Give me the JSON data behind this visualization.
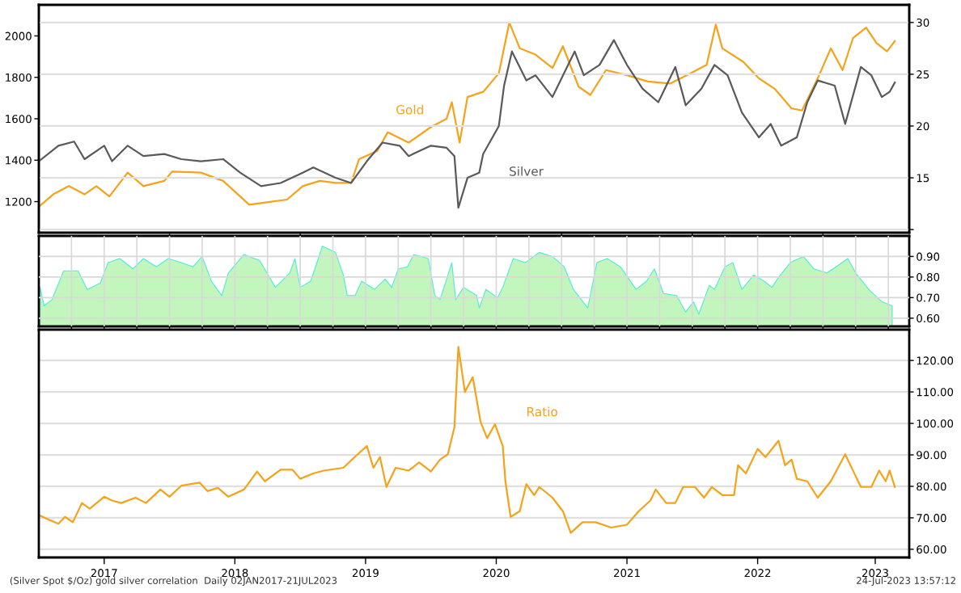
{
  "chart_data": [
    {
      "type": "line",
      "xlim": [
        2017.0,
        2023.66
      ],
      "xticks": [
        {
          "value": 2018.0,
          "label": null
        },
        {
          "value": 2019.0,
          "label": null
        },
        {
          "value": 2020.0,
          "label": null
        },
        {
          "value": 2021.0,
          "label": null
        },
        {
          "value": 2022.0,
          "label": null
        },
        {
          "value": 2023.0,
          "label": null
        }
      ],
      "ylim": [
        1050,
        2150
      ],
      "yticks": [
        1200,
        1400,
        1600,
        1800,
        2000
      ],
      "y2lim": [
        9.7,
        31.7
      ],
      "y2ticks": [
        {
          "value": 10,
          "label": null
        },
        15,
        20,
        25,
        30
      ],
      "grid": "y",
      "tick_labels": "y",
      "series": [
        {
          "name": "Gold",
          "color": "#f5a31a",
          "x": [
            2017.0,
            2017.11,
            2017.23,
            2017.35,
            2017.44,
            2017.54,
            2017.68,
            2017.8,
            2017.96,
            2018.02,
            2018.24,
            2018.41,
            2018.61,
            2018.78,
            2018.9,
            2019.02,
            2019.15,
            2019.27,
            2019.39,
            2019.45,
            2019.59,
            2019.67,
            2019.83,
            2020.0,
            2020.12,
            2020.16,
            2020.22,
            2020.28,
            2020.4,
            2020.52,
            2020.6,
            2020.68,
            2020.8,
            2020.93,
            2021.01,
            2021.13,
            2021.22,
            2021.34,
            2021.5,
            2021.66,
            2021.83,
            2021.99,
            2022.11,
            2022.18,
            2022.23,
            2022.39,
            2022.51,
            2022.63,
            2022.76,
            2022.84,
            2022.96,
            2023.06,
            2023.15,
            2023.23,
            2023.33,
            2023.41,
            2023.49,
            2023.55
          ],
          "values": [
            1175,
            1235,
            1275,
            1235,
            1275,
            1225,
            1340,
            1275,
            1300,
            1345,
            1340,
            1300,
            1185,
            1200,
            1210,
            1275,
            1300,
            1290,
            1290,
            1405,
            1445,
            1535,
            1485,
            1560,
            1600,
            1680,
            1485,
            1705,
            1730,
            1820,
            2065,
            1940,
            1910,
            1845,
            1950,
            1755,
            1715,
            1835,
            1810,
            1780,
            1770,
            1820,
            1860,
            2055,
            1940,
            1875,
            1795,
            1745,
            1650,
            1640,
            1795,
            1940,
            1835,
            1990,
            2040,
            1965,
            1925,
            1975
          ]
        },
        {
          "name": "Silver",
          "color": "#5a5a5a",
          "axis": "y2",
          "x": [
            2017.0,
            2017.15,
            2017.27,
            2017.35,
            2017.5,
            2017.56,
            2017.68,
            2017.8,
            2017.96,
            2018.09,
            2018.24,
            2018.41,
            2018.54,
            2018.7,
            2018.85,
            2019.02,
            2019.1,
            2019.27,
            2019.39,
            2019.51,
            2019.63,
            2019.76,
            2019.83,
            2020.0,
            2020.12,
            2020.18,
            2020.21,
            2020.28,
            2020.37,
            2020.4,
            2020.52,
            2020.56,
            2020.62,
            2020.73,
            2020.8,
            2020.93,
            2021.1,
            2021.17,
            2021.29,
            2021.4,
            2021.5,
            2021.62,
            2021.74,
            2021.87,
            2021.95,
            2022.07,
            2022.17,
            2022.27,
            2022.38,
            2022.51,
            2022.6,
            2022.68,
            2022.8,
            2022.88,
            2022.96,
            2023.09,
            2023.17,
            2023.29,
            2023.37,
            2023.45,
            2023.51,
            2023.55
          ],
          "values": [
            16.6,
            18.1,
            18.5,
            16.8,
            18.1,
            16.6,
            18.1,
            17.1,
            17.3,
            16.8,
            16.6,
            16.8,
            15.5,
            14.2,
            14.5,
            15.5,
            16.0,
            15.0,
            14.5,
            16.6,
            18.4,
            18.1,
            17.1,
            18.1,
            17.9,
            17.1,
            12.1,
            15.0,
            15.5,
            17.3,
            20.0,
            23.9,
            27.2,
            24.4,
            24.9,
            22.8,
            27.2,
            24.9,
            25.9,
            28.3,
            25.9,
            23.6,
            22.3,
            25.7,
            22.0,
            23.6,
            25.9,
            24.9,
            21.3,
            18.9,
            20.2,
            18.1,
            18.9,
            22.3,
            24.4,
            23.9,
            20.2,
            25.7,
            24.9,
            22.8,
            23.3,
            24.2
          ]
        }
      ]
    },
    {
      "type": "area",
      "xlim": [
        2017.0,
        2023.66
      ],
      "xticks": [
        {
          "value": 2017.25,
          "label": null
        },
        {
          "value": 2017.5,
          "label": null
        },
        {
          "value": 2017.75,
          "label": null
        },
        {
          "value": 2018.0,
          "label": null
        },
        {
          "value": 2018.25,
          "label": null
        },
        {
          "value": 2018.5,
          "label": null
        },
        {
          "value": 2018.75,
          "label": null
        },
        {
          "value": 2019.0,
          "label": null
        },
        {
          "value": 2019.25,
          "label": null
        },
        {
          "value": 2019.5,
          "label": null
        },
        {
          "value": 2019.75,
          "label": null
        },
        {
          "value": 2020.0,
          "label": null
        },
        {
          "value": 2020.25,
          "label": null
        },
        {
          "value": 2020.5,
          "label": null
        },
        {
          "value": 2020.75,
          "label": null
        },
        {
          "value": 2021.0,
          "label": null
        },
        {
          "value": 2021.25,
          "label": null
        },
        {
          "value": 2021.5,
          "label": null
        },
        {
          "value": 2021.75,
          "label": null
        },
        {
          "value": 2022.0,
          "label": null
        },
        {
          "value": 2022.25,
          "label": null
        },
        {
          "value": 2022.5,
          "label": null
        },
        {
          "value": 2022.75,
          "label": null
        },
        {
          "value": 2023.0,
          "label": null
        },
        {
          "value": 2023.25,
          "label": null
        },
        {
          "value": 2023.5,
          "label": null
        }
      ],
      "ylim": [
        0.56,
        1.0
      ],
      "yticks": [
        {
          "value": 0.6,
          "label": "0.60"
        },
        {
          "value": 0.7,
          "label": "0.70"
        },
        {
          "value": 0.8,
          "label": "0.80"
        },
        {
          "value": 0.9,
          "label": "0.90"
        }
      ],
      "grid": true,
      "tick_labels": "y",
      "series": [
        {
          "color": "#b8f5b0",
          "x": [
            2017.01,
            2017.04,
            2017.1,
            2017.19,
            2017.3,
            2017.37,
            2017.47,
            2017.53,
            2017.62,
            2017.72,
            2017.8,
            2017.9,
            2017.99,
            2018.09,
            2018.18,
            2018.25,
            2018.32,
            2018.4,
            2018.45,
            2018.57,
            2018.69,
            2018.81,
            2018.92,
            2018.96,
            2019.0,
            2019.08,
            2019.17,
            2019.27,
            2019.33,
            2019.36,
            2019.42,
            2019.47,
            2019.57,
            2019.65,
            2019.7,
            2019.75,
            2019.82,
            2019.87,
            2019.98,
            2020.03,
            2020.07,
            2020.16,
            2020.19,
            2020.25,
            2020.35,
            2020.37,
            2020.42,
            2020.51,
            2020.55,
            2020.63,
            2020.72,
            2020.83,
            2020.93,
            2021.02,
            2021.09,
            2021.2,
            2021.27,
            2021.35,
            2021.45,
            2021.57,
            2021.65,
            2021.71,
            2021.78,
            2021.88,
            2021.95,
            2022.01,
            2022.05,
            2022.13,
            2022.17,
            2022.25,
            2022.31,
            2022.38,
            2022.47,
            2022.55,
            2022.61,
            2022.65,
            2022.75,
            2022.85,
            2022.93,
            2023.03,
            2023.1,
            2023.19,
            2023.25,
            2023.35,
            2023.45,
            2023.53
          ],
          "values": [
            0.75,
            0.66,
            0.69,
            0.83,
            0.83,
            0.74,
            0.77,
            0.87,
            0.89,
            0.84,
            0.89,
            0.85,
            0.89,
            0.87,
            0.85,
            0.9,
            0.78,
            0.71,
            0.82,
            0.91,
            0.88,
            0.75,
            0.82,
            0.89,
            0.75,
            0.78,
            0.95,
            0.92,
            0.81,
            0.71,
            0.71,
            0.78,
            0.74,
            0.79,
            0.75,
            0.84,
            0.85,
            0.91,
            0.89,
            0.71,
            0.69,
            0.87,
            0.69,
            0.75,
            0.71,
            0.65,
            0.74,
            0.7,
            0.75,
            0.89,
            0.87,
            0.92,
            0.9,
            0.85,
            0.74,
            0.65,
            0.87,
            0.89,
            0.85,
            0.74,
            0.78,
            0.84,
            0.72,
            0.71,
            0.63,
            0.68,
            0.62,
            0.76,
            0.74,
            0.85,
            0.87,
            0.74,
            0.81,
            0.78,
            0.75,
            0.79,
            0.87,
            0.9,
            0.84,
            0.82,
            0.85,
            0.89,
            0.82,
            0.74,
            0.68,
            0.66
          ]
        }
      ]
    },
    {
      "type": "line",
      "xlim": [
        2017.0,
        2023.66
      ],
      "xticks": [
        {
          "value": 2017.5,
          "label": "2017"
        },
        {
          "value": 2018.5,
          "label": "2018"
        },
        {
          "value": 2019.5,
          "label": "2019"
        },
        {
          "value": 2020.5,
          "label": "2020"
        },
        {
          "value": 2021.5,
          "label": "2021"
        },
        {
          "value": 2022.5,
          "label": "2022"
        },
        {
          "value": 2023.4,
          "label": "2023"
        }
      ],
      "ylim": [
        57.4,
        129.8
      ],
      "yticks": [
        {
          "value": 60,
          "label": "60.00"
        },
        {
          "value": 70,
          "label": "70.00"
        },
        {
          "value": 80,
          "label": "80.00"
        },
        {
          "value": 90,
          "label": "90.00"
        },
        {
          "value": 100,
          "label": "100.00"
        },
        {
          "value": 110,
          "label": "110.00"
        },
        {
          "value": 120,
          "label": "120.00"
        }
      ],
      "grid": "y",
      "series": [
        {
          "name": "Ratio",
          "color": "#f5a31a",
          "x": [
            2017.0,
            2017.07,
            2017.15,
            2017.2,
            2017.26,
            2017.33,
            2017.39,
            2017.5,
            2017.56,
            2017.63,
            2017.74,
            2017.82,
            2017.93,
            2018.0,
            2018.09,
            2018.23,
            2018.29,
            2018.37,
            2018.45,
            2018.57,
            2018.67,
            2018.73,
            2018.85,
            2018.94,
            2019.0,
            2019.1,
            2019.18,
            2019.33,
            2019.43,
            2019.51,
            2019.56,
            2019.61,
            2019.66,
            2019.73,
            2019.83,
            2019.91,
            2020.0,
            2020.07,
            2020.13,
            2020.18,
            2020.21,
            2020.26,
            2020.32,
            2020.38,
            2020.43,
            2020.49,
            2020.55,
            2020.57,
            2020.61,
            2020.68,
            2020.73,
            2020.79,
            2020.83,
            2020.93,
            2021.01,
            2021.07,
            2021.16,
            2021.26,
            2021.38,
            2021.5,
            2021.59,
            2021.68,
            2021.72,
            2021.8,
            2021.87,
            2021.93,
            2022.02,
            2022.09,
            2022.15,
            2022.23,
            2022.32,
            2022.35,
            2022.41,
            2022.5,
            2022.56,
            2022.66,
            2022.71,
            2022.76,
            2022.8,
            2022.88,
            2022.96,
            2023.06,
            2023.17,
            2023.21,
            2023.29,
            2023.37,
            2023.43,
            2023.48,
            2023.51,
            2023.55
          ],
          "values": [
            70.9,
            69.5,
            68.1,
            70.3,
            68.6,
            74.7,
            72.9,
            76.7,
            75.5,
            74.7,
            76.4,
            74.7,
            79.0,
            76.7,
            80.2,
            81.2,
            78.5,
            79.5,
            76.7,
            79.0,
            84.7,
            81.6,
            85.3,
            85.3,
            82.4,
            84.1,
            85.0,
            85.9,
            89.8,
            92.8,
            85.9,
            89.3,
            79.8,
            85.9,
            85.0,
            87.6,
            84.7,
            88.5,
            90.2,
            98.8,
            124.3,
            110.0,
            114.7,
            100.5,
            95.3,
            99.7,
            92.8,
            81.6,
            70.3,
            72.1,
            80.7,
            77.2,
            79.8,
            76.4,
            72.1,
            65.2,
            68.6,
            68.6,
            66.9,
            67.8,
            72.1,
            75.5,
            79.0,
            74.7,
            74.7,
            79.8,
            79.8,
            76.4,
            79.8,
            77.2,
            77.2,
            86.7,
            84.1,
            91.9,
            89.3,
            94.5,
            86.7,
            88.5,
            82.4,
            81.6,
            76.4,
            81.6,
            90.2,
            86.7,
            79.8,
            79.8,
            85.0,
            81.6,
            85.0,
            79.8
          ]
        }
      ],
      "annotations": [
        "(Silver Spot $/Oz) gold silver correlation  Daily 02JAN2017-21JUL2023",
        "24-Jul-2023 13:57:12"
      ]
    }
  ]
}
